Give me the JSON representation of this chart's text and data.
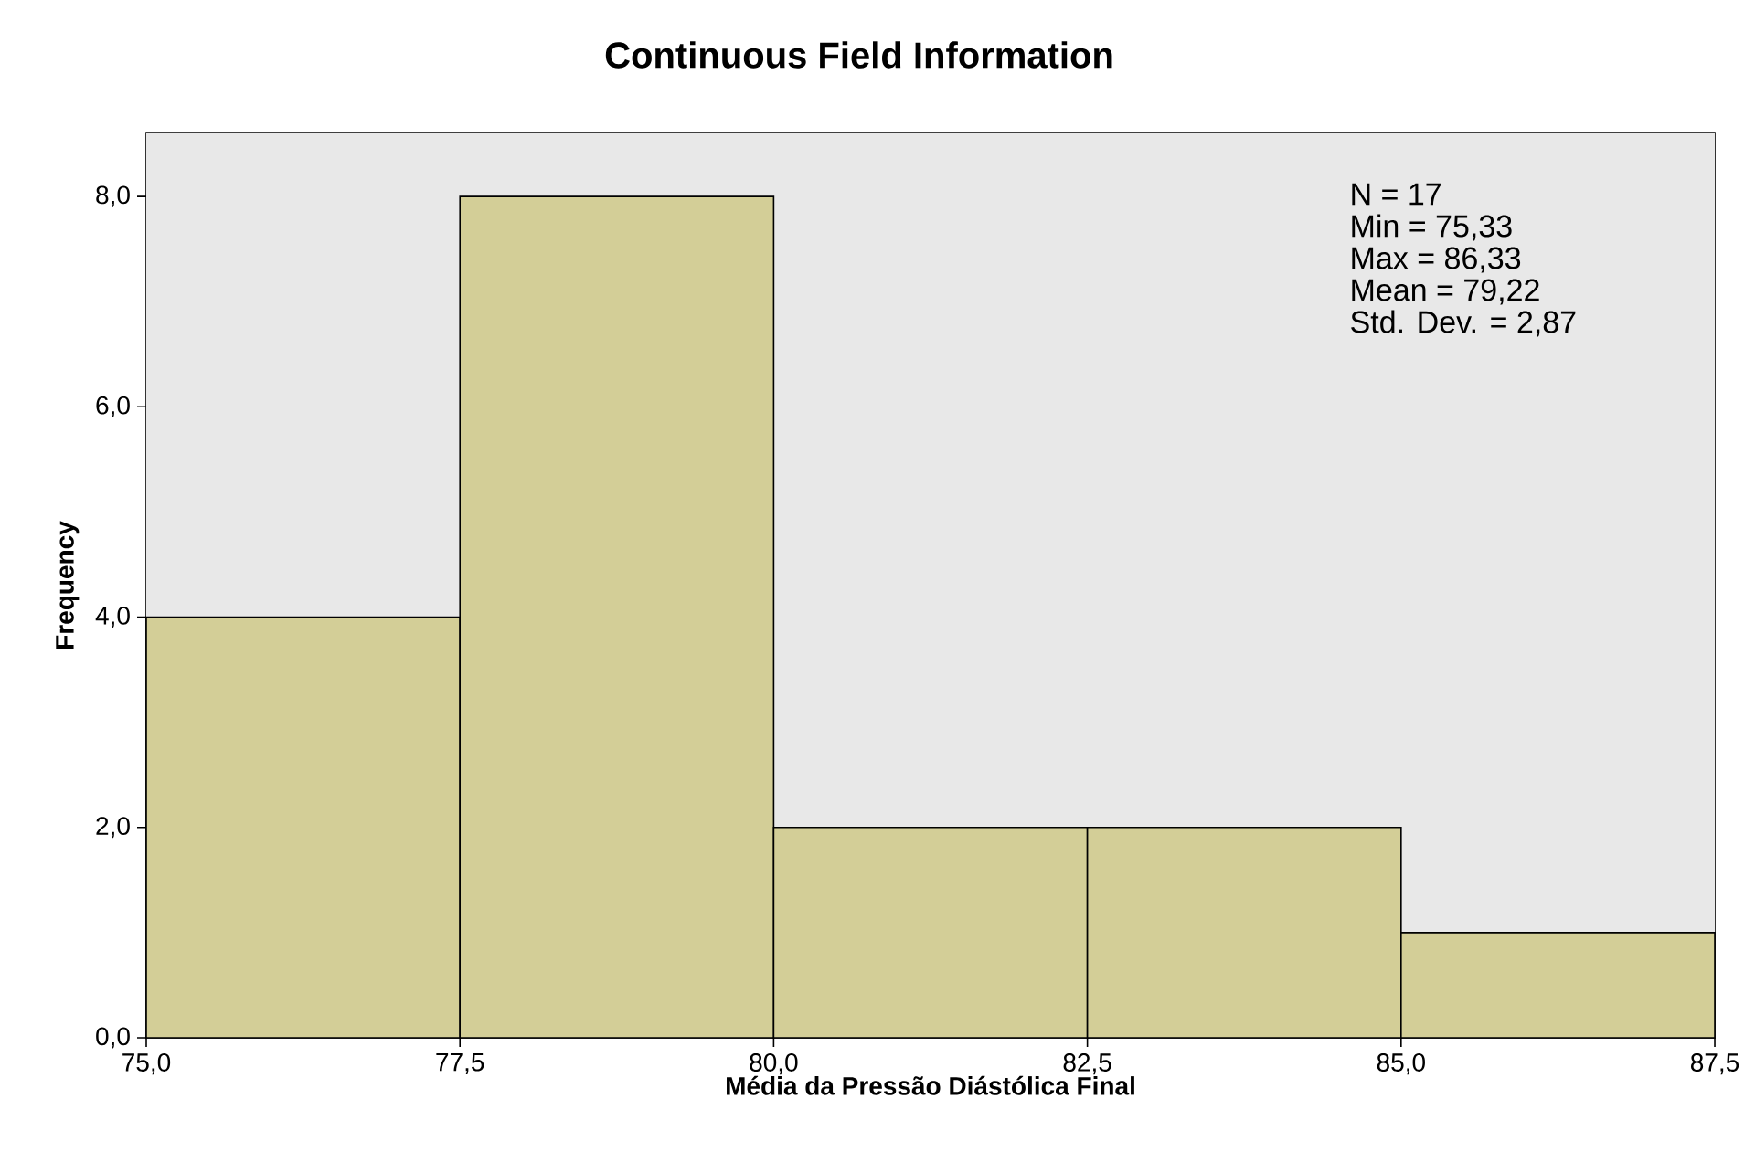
{
  "chart_data": {
    "type": "histogram",
    "title": "Continuous Field Information",
    "xlabel": "Média da Pressão Diástólica Final",
    "ylabel": "Frequency",
    "bins": [
      75,
      77.5,
      80,
      82.5,
      85,
      87.5
    ],
    "values": [
      4,
      8,
      2,
      2,
      1
    ],
    "color": "#d3ce97",
    "xlim": [
      75,
      87.5
    ],
    "ylim": [
      0,
      8.6
    ],
    "xticks": [
      {
        "value": 75,
        "label": "75,0"
      },
      {
        "value": 77.5,
        "label": "77,5"
      },
      {
        "value": 80,
        "label": "80,0"
      },
      {
        "value": 82.5,
        "label": "82,5"
      },
      {
        "value": 85,
        "label": "85,0"
      },
      {
        "value": 87.5,
        "label": "87,5"
      }
    ],
    "yticks": [
      {
        "value": 0,
        "label": "0,0"
      },
      {
        "value": 2,
        "label": "2,0"
      },
      {
        "value": 4,
        "label": "4,0"
      },
      {
        "value": 6,
        "label": "6,0"
      },
      {
        "value": 8,
        "label": "8,0"
      }
    ],
    "annotations": [
      "N = 17",
      "Min = 75,33",
      "Max = 86,33",
      "Mean = 79,22",
      "Std. Dev. = 2,87"
    ]
  }
}
